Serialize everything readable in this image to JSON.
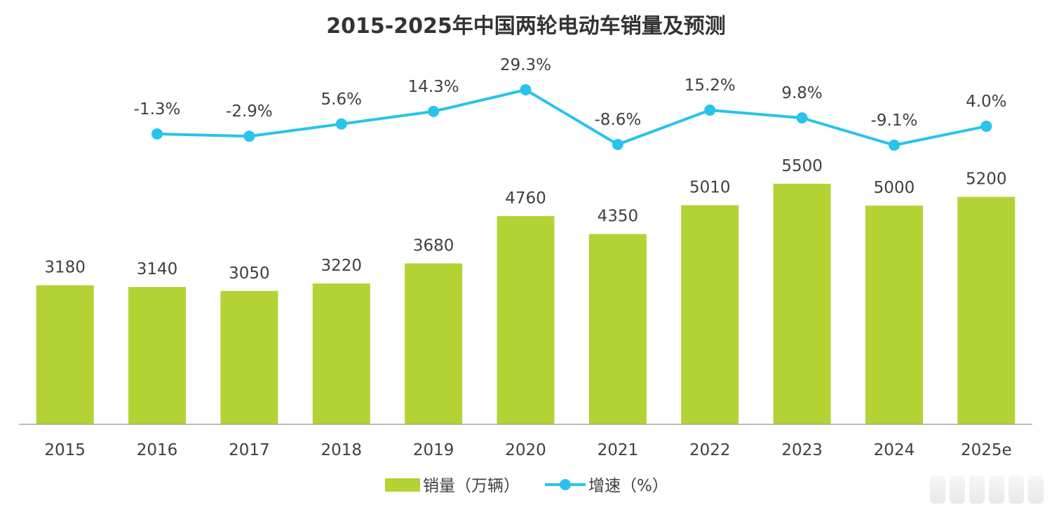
{
  "colors": {
    "bar": "#b3d334",
    "line": "#29c3ec",
    "text": "#404040",
    "title": "#333333",
    "axis": "#a6a6a6"
  },
  "chart_data": {
    "type": "bar",
    "title": "2015-2025年中国两轮电动车销量及预测",
    "categories": [
      "2015",
      "2016",
      "2017",
      "2018",
      "2019",
      "2020",
      "2021",
      "2022",
      "2023",
      "2024",
      "2025e"
    ],
    "series": [
      {
        "name": "销量（万辆）",
        "type": "bar",
        "values": [
          3180,
          3140,
          3050,
          3220,
          3680,
          4760,
          4350,
          5010,
          5500,
          5000,
          5200
        ],
        "labels": [
          "3180",
          "3140",
          "3050",
          "3220",
          "3680",
          "4760",
          "4350",
          "5010",
          "5500",
          "5000",
          "5200"
        ]
      },
      {
        "name": "增速（%）",
        "type": "line",
        "values": [
          null,
          -1.3,
          -2.9,
          5.6,
          14.3,
          29.3,
          -8.6,
          15.2,
          9.8,
          -9.1,
          4.0
        ],
        "labels": [
          "",
          "-1.3%",
          "-2.9%",
          "5.6%",
          "14.3%",
          "29.3%",
          "-8.6%",
          "15.2%",
          "9.8%",
          "-9.1%",
          "4.0%"
        ]
      }
    ],
    "ylim_bar": [
      0,
      6500
    ],
    "ylim_line": [
      -9.1,
      29.3
    ],
    "grid": false,
    "legend_position": "bottom"
  }
}
